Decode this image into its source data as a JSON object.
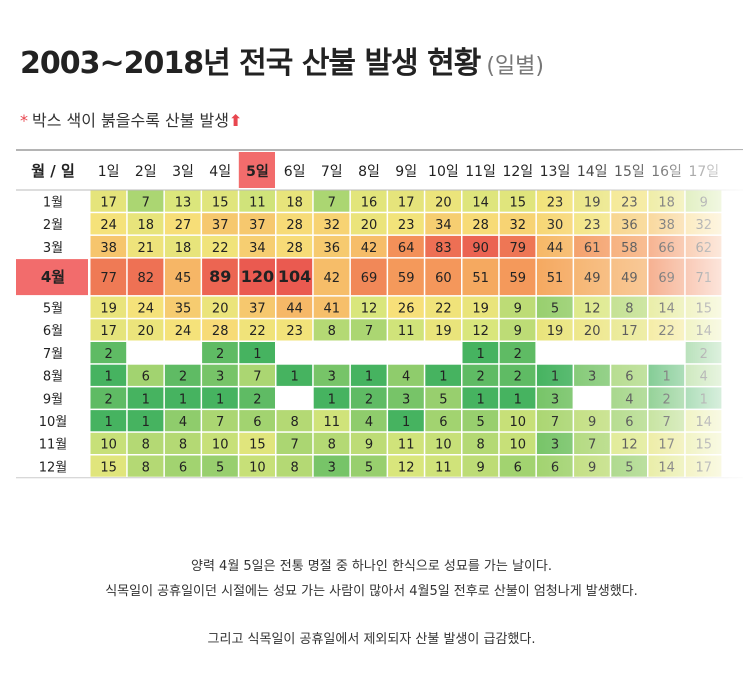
{
  "title": "2003~2018년 전국 산불 발생 현황",
  "title_sub": "(일별)",
  "note": {
    "star": "*",
    "text": "박스 색이 붉을수록 산불 발생",
    "arrow": "⬆"
  },
  "captions": [
    "양력 4월 5일은 전통 명절 중 하나인 한식으로 성묘를 가는 날이다.",
    "식목일이 공휴일이던 시절에는 성묘 가는 사람이 많아서 4월5일 전후로 산불이 엄청나게 발생했다.",
    "그리고 식목일이 공휴일에서 제외되자 산불 발생이 급감했다."
  ],
  "colors": {
    "scale": [
      "#2eaa5c",
      "#8fcc6c",
      "#d9e67c",
      "#f7e27a",
      "#f5a05c",
      "#ea5a50"
    ],
    "highlight": "#f26c6c",
    "grid": "#ffffff"
  },
  "chart_data": {
    "type": "heatmap",
    "corner_label": "월 / 일",
    "highlight_row": "4월",
    "highlight_col": "5일",
    "columns": [
      "1일",
      "2일",
      "3일",
      "4일",
      "5일",
      "6일",
      "7일",
      "8일",
      "9일",
      "10일",
      "11일",
      "12일",
      "13일",
      "14일",
      "15일",
      "16일",
      "17일"
    ],
    "rows": [
      "1월",
      "2월",
      "3월",
      "4월",
      "5월",
      "6월",
      "7월",
      "8월",
      "9월",
      "10월",
      "11월",
      "12월"
    ],
    "values": [
      [
        17,
        7,
        13,
        15,
        11,
        18,
        7,
        16,
        17,
        20,
        14,
        15,
        23,
        19,
        23,
        18,
        9
      ],
      [
        24,
        18,
        27,
        37,
        37,
        28,
        32,
        20,
        23,
        34,
        28,
        32,
        30,
        23,
        36,
        38,
        32
      ],
      [
        38,
        21,
        18,
        22,
        34,
        28,
        36,
        42,
        64,
        83,
        90,
        79,
        44,
        61,
        58,
        66,
        62
      ],
      [
        77,
        82,
        45,
        89,
        120,
        104,
        42,
        69,
        59,
        60,
        51,
        59,
        51,
        49,
        49,
        69,
        71
      ],
      [
        19,
        24,
        35,
        20,
        37,
        44,
        41,
        12,
        26,
        22,
        19,
        9,
        5,
        12,
        8,
        14,
        15
      ],
      [
        17,
        20,
        24,
        28,
        22,
        23,
        8,
        7,
        11,
        19,
        12,
        9,
        19,
        20,
        17,
        22,
        14
      ],
      [
        2,
        null,
        null,
        2,
        1,
        null,
        null,
        null,
        null,
        null,
        1,
        2,
        null,
        null,
        null,
        null,
        2
      ],
      [
        1,
        6,
        2,
        3,
        7,
        1,
        3,
        1,
        4,
        1,
        2,
        2,
        1,
        3,
        6,
        1,
        4
      ],
      [
        2,
        1,
        1,
        1,
        2,
        null,
        1,
        2,
        3,
        5,
        1,
        1,
        3,
        null,
        4,
        2,
        1
      ],
      [
        1,
        1,
        4,
        7,
        6,
        8,
        11,
        4,
        1,
        6,
        5,
        10,
        7,
        9,
        6,
        7,
        14
      ],
      [
        10,
        8,
        8,
        10,
        15,
        7,
        8,
        9,
        11,
        10,
        8,
        10,
        3,
        7,
        12,
        17,
        15
      ],
      [
        15,
        8,
        6,
        5,
        10,
        8,
        3,
        5,
        12,
        11,
        9,
        6,
        6,
        9,
        5,
        14,
        17
      ]
    ],
    "bold_values": [
      [
        3,
        3
      ],
      [
        3,
        4
      ],
      [
        3,
        5
      ]
    ]
  }
}
